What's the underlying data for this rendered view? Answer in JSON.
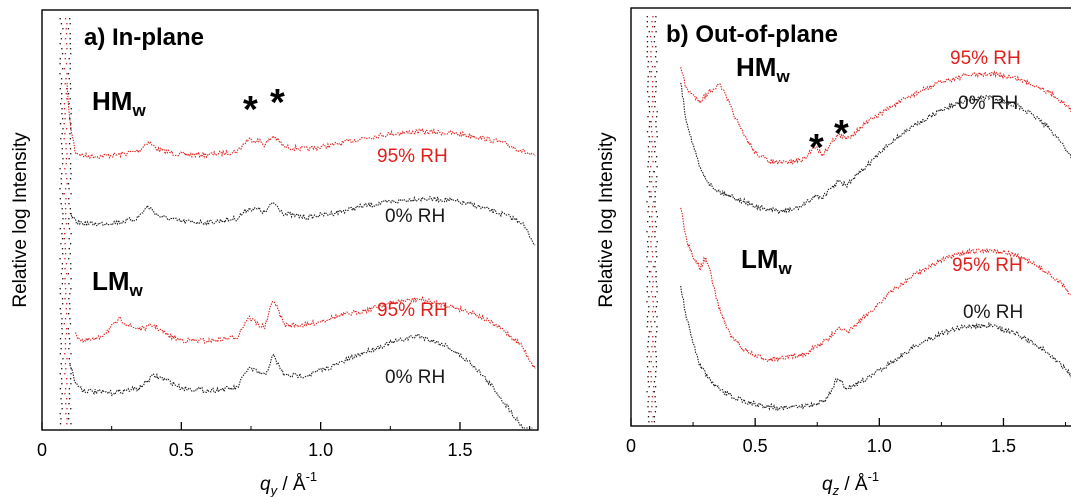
{
  "chart_data": [
    {
      "type": "line",
      "title": "a) In-plane",
      "xlabel": "q",
      "xlabel_sub": "y",
      "xlabel_unit": " /  Å",
      "xlabel_sup": "-1",
      "ylabel": "Relative log Intensity",
      "xlim": [
        0,
        1.78
      ],
      "x_ticks": [
        "0",
        "0.5",
        "1.0",
        "1.5"
      ],
      "x_tick_values": [
        0,
        0.5,
        1.0,
        1.5
      ],
      "y_ticks": "unlabeled",
      "colors": {
        "95% RH": "#e0201c",
        "0% RH": "#1a1a1a"
      },
      "groups": [
        {
          "sample": "HM",
          "sample_sub": "w",
          "series": [
            {
              "name": "95% RH",
              "color": "#e0201c",
              "x": [
                0.09,
                0.1,
                0.12,
                0.15,
                0.2,
                0.25,
                0.3,
                0.35,
                0.38,
                0.42,
                0.5,
                0.6,
                0.7,
                0.74,
                0.78,
                0.8,
                0.83,
                0.87,
                0.95,
                1.05,
                1.15,
                1.25,
                1.35,
                1.45,
                1.55,
                1.65,
                1.72,
                1.77
              ],
              "y": [
                3.3,
                1.6,
                0.25,
                0.1,
                0.08,
                0.12,
                0.2,
                0.35,
                0.75,
                0.35,
                0.15,
                0.15,
                0.3,
                0.85,
                0.78,
                0.6,
                1.0,
                0.5,
                0.4,
                0.6,
                0.9,
                1.1,
                1.2,
                1.15,
                1.0,
                0.7,
                0.35,
                0.05
              ]
            },
            {
              "name": "0% RH",
              "color": "#1a1a1a",
              "x": [
                0.1,
                0.12,
                0.15,
                0.2,
                0.25,
                0.3,
                0.34,
                0.38,
                0.42,
                0.5,
                0.6,
                0.7,
                0.74,
                0.78,
                0.8,
                0.83,
                0.87,
                0.95,
                1.05,
                1.15,
                1.25,
                1.35,
                1.45,
                1.55,
                1.65,
                1.72,
                1.77
              ],
              "y": [
                0.5,
                0.15,
                0.08,
                0.05,
                0.1,
                0.18,
                0.3,
                0.85,
                0.4,
                0.15,
                0.12,
                0.3,
                0.75,
                0.7,
                0.55,
                1.05,
                0.5,
                0.35,
                0.55,
                0.85,
                1.05,
                1.2,
                1.15,
                0.9,
                0.5,
                0.15,
                -0.9
              ]
            }
          ]
        },
        {
          "sample": "LM",
          "sample_sub": "w",
          "series": [
            {
              "name": "95% RH",
              "color": "#e0201c",
              "x": [
                0.12,
                0.15,
                0.2,
                0.25,
                0.28,
                0.32,
                0.36,
                0.4,
                0.45,
                0.5,
                0.6,
                0.7,
                0.74,
                0.78,
                0.8,
                0.83,
                0.87,
                0.95,
                1.05,
                1.15,
                1.25,
                1.35,
                1.45,
                1.55,
                1.65,
                1.72,
                1.77
              ],
              "y": [
                0.25,
                0.1,
                0.15,
                0.45,
                0.65,
                0.45,
                0.4,
                0.5,
                0.25,
                0.12,
                0.1,
                0.2,
                0.7,
                0.5,
                0.45,
                1.15,
                0.5,
                0.5,
                0.7,
                0.85,
                1.05,
                1.15,
                1.0,
                0.8,
                0.4,
                0.0,
                -0.6
              ]
            },
            {
              "name": "0% RH",
              "color": "#1a1a1a",
              "x": [
                0.1,
                0.12,
                0.15,
                0.2,
                0.25,
                0.3,
                0.35,
                0.4,
                0.45,
                0.5,
                0.6,
                0.7,
                0.74,
                0.78,
                0.8,
                0.83,
                0.87,
                0.95,
                1.05,
                1.15,
                1.25,
                1.35,
                1.45,
                1.55,
                1.62,
                1.68,
                1.72,
                1.76
              ],
              "y": [
                0.6,
                0.2,
                0.05,
                0.02,
                0.0,
                0.05,
                0.1,
                0.35,
                0.25,
                0.1,
                0.05,
                0.1,
                0.5,
                0.4,
                0.35,
                0.75,
                0.35,
                0.35,
                0.55,
                0.8,
                1.0,
                1.15,
                0.95,
                0.55,
                0.1,
                -0.35,
                -0.65,
                -0.9
              ]
            }
          ]
        }
      ],
      "curve_labels": [
        "95% RH",
        "0% RH",
        "95% RH",
        "0% RH"
      ],
      "annotations": [
        "*",
        "*"
      ]
    },
    {
      "type": "line",
      "title": "b) Out-of-plane",
      "xlabel": "q",
      "xlabel_sub": "z",
      "xlabel_unit": " /  Å",
      "xlabel_sup": "-1",
      "ylabel": "Relative log Intensity",
      "xlim": [
        0,
        1.78
      ],
      "x_ticks": [
        "0",
        "0.5",
        "1.0",
        "1.5"
      ],
      "x_tick_values": [
        0,
        0.5,
        1.0,
        1.5
      ],
      "y_ticks": "unlabeled",
      "colors": {
        "95% RH": "#e0201c",
        "0% RH": "#1a1a1a"
      },
      "groups": [
        {
          "sample": "HM",
          "sample_sub": "w",
          "series": [
            {
              "name": "95% RH",
              "color": "#e0201c",
              "x": [
                0.2,
                0.22,
                0.25,
                0.28,
                0.32,
                0.36,
                0.4,
                0.45,
                0.5,
                0.55,
                0.6,
                0.65,
                0.7,
                0.74,
                0.77,
                0.8,
                0.83,
                0.87,
                0.95,
                1.05,
                1.15,
                1.25,
                1.35,
                1.45,
                1.55,
                1.65,
                1.72,
                1.78
              ],
              "y": [
                4.3,
                3.5,
                3.2,
                3.0,
                3.4,
                3.6,
                2.8,
                1.8,
                1.1,
                0.8,
                0.7,
                0.75,
                0.85,
                1.35,
                1.0,
                1.35,
                1.75,
                1.6,
                2.2,
                2.8,
                3.3,
                3.7,
                3.95,
                4.0,
                3.85,
                3.5,
                3.1,
                2.6
              ]
            },
            {
              "name": "0% RH",
              "color": "#1a1a1a",
              "x": [
                0.2,
                0.22,
                0.25,
                0.28,
                0.32,
                0.36,
                0.4,
                0.45,
                0.5,
                0.55,
                0.6,
                0.65,
                0.7,
                0.74,
                0.77,
                0.8,
                0.83,
                0.87,
                0.95,
                1.05,
                1.15,
                1.25,
                1.35,
                1.45,
                1.55,
                1.65,
                1.72,
                1.78
              ],
              "y": [
                4.0,
                3.0,
                2.2,
                1.5,
                1.05,
                0.85,
                0.75,
                0.6,
                0.45,
                0.35,
                0.3,
                0.35,
                0.5,
                0.75,
                0.7,
                0.9,
                1.15,
                1.05,
                1.6,
                2.3,
                2.8,
                3.2,
                3.5,
                3.55,
                3.35,
                2.9,
                2.4,
                1.8
              ]
            }
          ]
        },
        {
          "sample": "LM",
          "sample_sub": "w",
          "series": [
            {
              "name": "95% RH",
              "color": "#e0201c",
              "x": [
                0.2,
                0.22,
                0.25,
                0.28,
                0.3,
                0.32,
                0.35,
                0.4,
                0.45,
                0.5,
                0.55,
                0.6,
                0.65,
                0.7,
                0.75,
                0.8,
                0.83,
                0.87,
                0.95,
                1.05,
                1.15,
                1.25,
                1.35,
                1.45,
                1.55,
                1.65,
                1.72,
                1.78
              ],
              "y": [
                3.2,
                2.6,
                2.2,
                2.0,
                2.2,
                1.9,
                1.3,
                0.7,
                0.45,
                0.3,
                0.25,
                0.25,
                0.3,
                0.35,
                0.5,
                0.65,
                0.85,
                0.75,
                1.1,
                1.55,
                1.9,
                2.15,
                2.3,
                2.35,
                2.25,
                2.0,
                1.75,
                1.45
              ]
            },
            {
              "name": "0% RH",
              "color": "#1a1a1a",
              "x": [
                0.2,
                0.22,
                0.25,
                0.28,
                0.32,
                0.36,
                0.4,
                0.45,
                0.5,
                0.55,
                0.6,
                0.65,
                0.7,
                0.74,
                0.78,
                0.8,
                0.83,
                0.87,
                0.95,
                1.05,
                1.15,
                1.25,
                1.35,
                1.45,
                1.55,
                1.65,
                1.72,
                1.78
              ],
              "y": [
                2.6,
                2.0,
                1.4,
                0.9,
                0.6,
                0.4,
                0.3,
                0.2,
                0.12,
                0.08,
                0.05,
                0.05,
                0.08,
                0.12,
                0.2,
                0.35,
                0.65,
                0.45,
                0.65,
                1.0,
                1.35,
                1.6,
                1.75,
                1.75,
                1.6,
                1.3,
                1.0,
                0.7
              ]
            }
          ]
        }
      ],
      "curve_labels": [
        "95% RH",
        "0% RH",
        "95% RH",
        "0% RH"
      ],
      "annotations": [
        "*",
        "*"
      ]
    }
  ]
}
